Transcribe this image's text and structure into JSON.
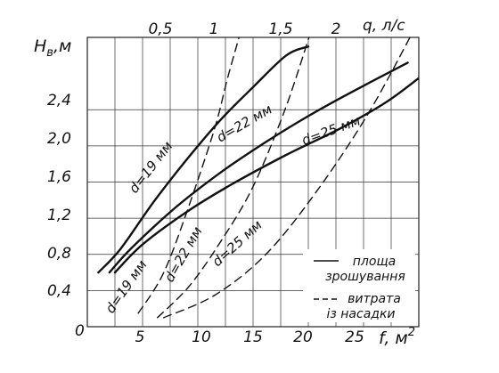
{
  "chart_data": {
    "type": "line",
    "x_axis": {
      "label": "f, м",
      "label_sup": "2",
      "range": [
        0,
        30
      ],
      "ticks": [
        5,
        10,
        15,
        20,
        25
      ],
      "tick_labels": [
        "5",
        "10",
        "15",
        "20",
        "25"
      ]
    },
    "x2_axis": {
      "label": "q, л/с",
      "range": [
        0,
        2.6
      ],
      "ticks": [
        0.5,
        1.0,
        1.5,
        2.0
      ],
      "tick_labels": [
        "0,5",
        "1",
        "1,5",
        "2"
      ]
    },
    "y_axis": {
      "label": "H",
      "label_sub": "в",
      "label_suffix": ",м",
      "range": [
        0,
        3.2
      ],
      "ticks": [
        0.4,
        0.8,
        1.2,
        1.6,
        2.0,
        2.4
      ],
      "tick_labels": [
        "0,4",
        "0,8",
        "1,2",
        "1,6",
        "2,0",
        "2,4"
      ]
    },
    "origin_label": "0",
    "grid": true,
    "series": [
      {
        "name": "d=19 мм",
        "kind": "area",
        "style": "solid",
        "axis": "x",
        "points": [
          [
            1,
            0.6
          ],
          [
            3,
            0.86
          ],
          [
            6,
            1.38
          ],
          [
            9,
            1.85
          ],
          [
            12,
            2.28
          ],
          [
            15,
            2.65
          ],
          [
            18,
            3.0
          ],
          [
            20,
            3.1
          ]
        ]
      },
      {
        "name": "d=22 мм",
        "kind": "area",
        "style": "solid",
        "axis": "x",
        "points": [
          [
            2,
            0.6
          ],
          [
            4,
            0.87
          ],
          [
            8,
            1.32
          ],
          [
            12,
            1.7
          ],
          [
            16,
            2.03
          ],
          [
            20,
            2.33
          ],
          [
            24,
            2.6
          ],
          [
            29,
            2.92
          ]
        ]
      },
      {
        "name": "d=25 мм",
        "kind": "area",
        "style": "solid",
        "axis": "x",
        "points": [
          [
            2.5,
            0.6
          ],
          [
            5,
            0.91
          ],
          [
            9,
            1.27
          ],
          [
            13,
            1.57
          ],
          [
            18,
            1.9
          ],
          [
            23,
            2.2
          ],
          [
            27,
            2.48
          ],
          [
            30,
            2.75
          ]
        ]
      },
      {
        "name": "d=19 мм",
        "kind": "flow",
        "style": "dashed",
        "axis": "x2",
        "points": [
          [
            0.4,
            0.15
          ],
          [
            0.6,
            0.6
          ],
          [
            0.8,
            1.35
          ],
          [
            1.0,
            2.2
          ],
          [
            1.1,
            2.75
          ],
          [
            1.2,
            3.25
          ]
        ]
      },
      {
        "name": "d=22 мм",
        "kind": "flow",
        "style": "dashed",
        "axis": "x2",
        "points": [
          [
            0.55,
            0.1
          ],
          [
            0.8,
            0.45
          ],
          [
            1.05,
            0.95
          ],
          [
            1.3,
            1.55
          ],
          [
            1.55,
            2.4
          ],
          [
            1.75,
            3.25
          ]
        ]
      },
      {
        "name": "d=25 мм",
        "kind": "flow",
        "style": "dashed",
        "axis": "x2",
        "points": [
          [
            0.6,
            0.1
          ],
          [
            1.0,
            0.35
          ],
          [
            1.4,
            0.8
          ],
          [
            1.8,
            1.5
          ],
          [
            2.2,
            2.35
          ],
          [
            2.55,
            3.25
          ]
        ]
      }
    ],
    "labels": {
      "area": [
        "d=19 мм",
        "d=22 мм",
        "d=25 мм"
      ],
      "flow": [
        "d=19 мм",
        "d=22 мм",
        "d=25 мм"
      ]
    },
    "legend": {
      "placement": "bottom-right",
      "items": [
        {
          "style": "solid",
          "lines": [
            "площа",
            "зрошування"
          ]
        },
        {
          "style": "dashed",
          "lines": [
            "витрата",
            "із насадки"
          ]
        }
      ]
    }
  }
}
